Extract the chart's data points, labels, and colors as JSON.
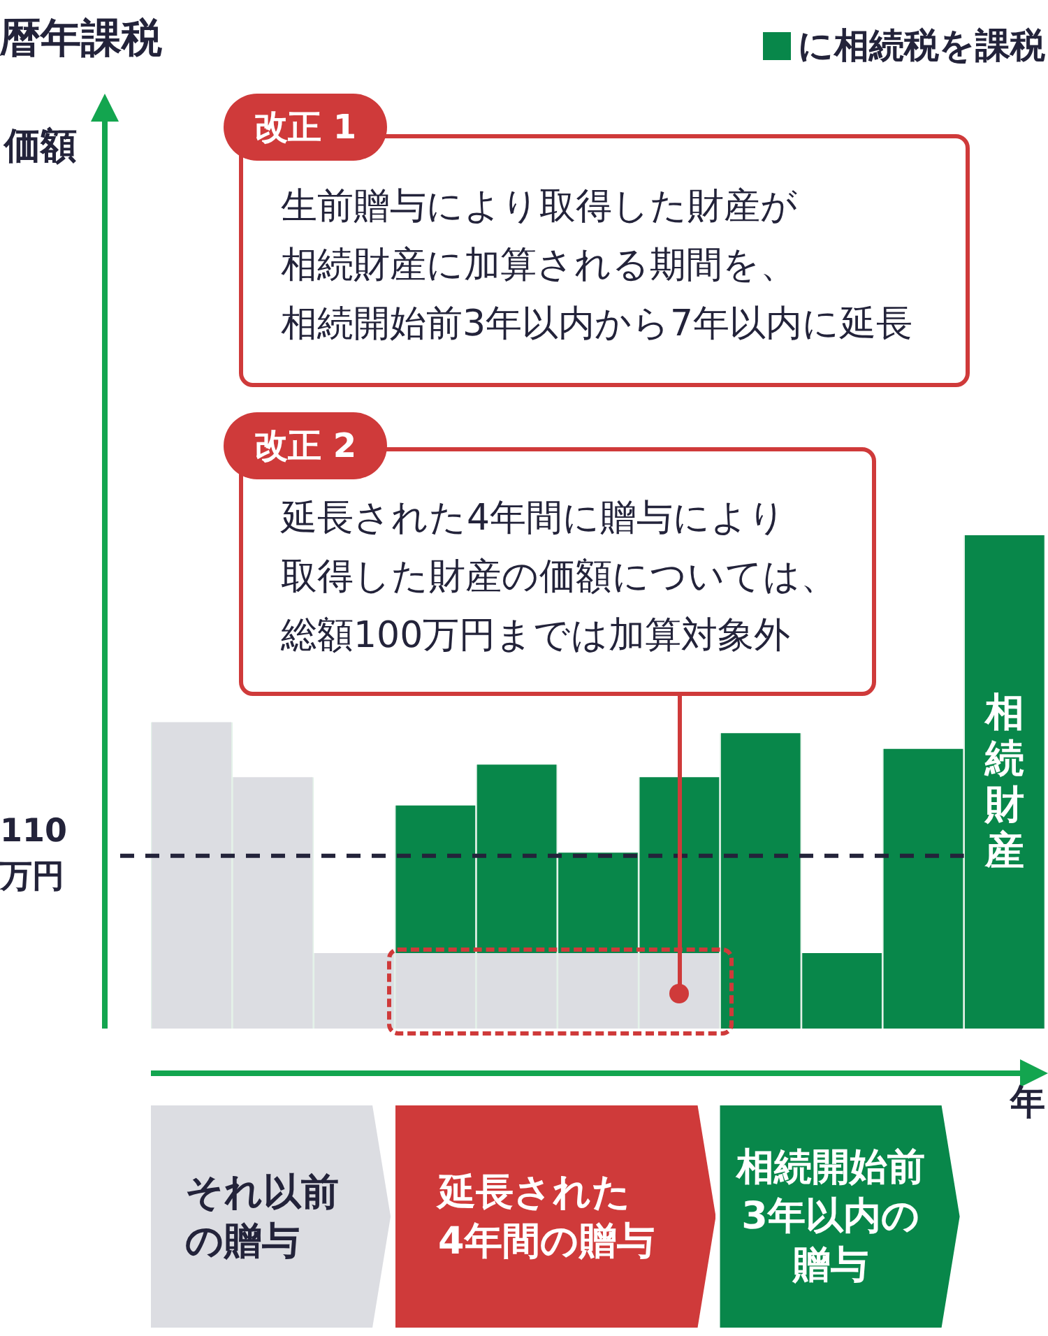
{
  "chart_data": {
    "type": "bar",
    "title": "暦年課税",
    "ylabel": "価額",
    "xlabel": "年",
    "categories": [
      null,
      null,
      null,
      null,
      null,
      null,
      null,
      null,
      null,
      null,
      null
    ],
    "series": [
      {
        "color": "#dcdde2",
        "values": [
          195,
          160,
          48,
          48,
          48,
          48,
          48,
          null,
          null,
          null,
          null
        ]
      },
      {
        "name": "に相続税を課税",
        "color": "#08874a",
        "values": [
          null,
          null,
          null,
          94,
          120,
          64,
          112,
          188,
          48,
          178,
          314
        ],
        "value_labels": [
          null,
          null,
          null,
          null,
          null,
          null,
          null,
          null,
          null,
          null,
          "相続財産"
        ]
      }
    ],
    "stacked": true,
    "ylim": [
      0,
      595
    ],
    "yticks": [
      {
        "value": 110,
        "label": "110万円"
      }
    ],
    "legend": "top right",
    "ref_lines": [
      {
        "axis": "y",
        "value": 110,
        "color": "#23233a",
        "line_style": "dashed"
      }
    ],
    "annotations": [
      "改正 1",
      "生前贈与により取得した財産が相続財産に加算される期間を、相続開始前3年以内から7年以内に延長",
      "改正 2",
      "延長された4年間に贈与により取得した財産の価額については、総額100万円までは加算対象外",
      "それ以前の贈与",
      "延長された4年間の贈与",
      "相続開始前3年以内の贈与"
    ]
  }
}
